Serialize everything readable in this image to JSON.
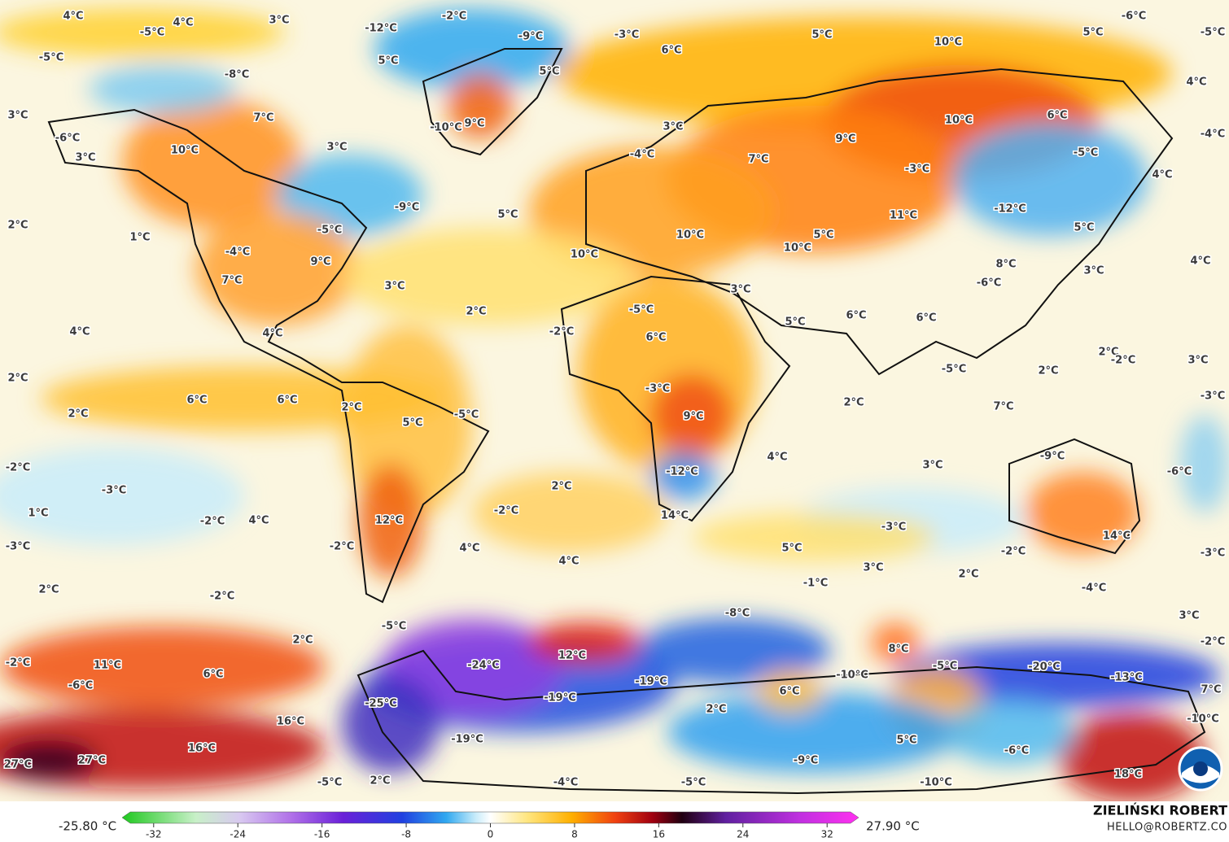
{
  "map": {
    "labels": [
      "4°C",
      "4°C",
      "3°C",
      "-2°C",
      "-6°C",
      "-5°C",
      "-12°C",
      "-9°C",
      "-3°C",
      "5°C",
      "5°C",
      "-5°C",
      "-5°C",
      "5°C",
      "6°C",
      "10°C",
      "5°C",
      "-8°C",
      "4°C",
      "3°C",
      "7°C",
      "9°C",
      "-10°C",
      "10°C",
      "6°C",
      "-6°C",
      "9°C",
      "3°C",
      "-4°C",
      "3°C",
      "10°C",
      "3°C",
      "-4°C",
      "7°C",
      "-5°C",
      "-3°C",
      "4°C",
      "-9°C",
      "5°C",
      "2°C",
      "1°C",
      "-5°C",
      "-12°C",
      "11°C",
      "5°C",
      "-4°C",
      "10°C",
      "5°C",
      "10°C",
      "10°C",
      "9°C",
      "8°C",
      "4°C",
      "3°C",
      "7°C",
      "3°C",
      "3°C",
      "-6°C",
      "2°C",
      "-5°C",
      "5°C",
      "6°C",
      "6°C",
      "4°C",
      "4°C",
      "-2°C",
      "6°C",
      "2°C",
      "2°C",
      "-2°C",
      "3°C",
      "-5°C",
      "2°C",
      "-3°C",
      "6°C",
      "6°C",
      "2°C",
      "-3°C",
      "2°C",
      "2°C",
      "5°C",
      "-5°C",
      "9°C",
      "7°C",
      "-9°C",
      "4°C",
      "-12°C",
      "3°C",
      "-2°C",
      "-3°C",
      "2°C",
      "-6°C",
      "1°C",
      "-2°C",
      "-2°C",
      "4°C",
      "12°C",
      "14°C",
      "-3°C",
      "-3°C",
      "-2°C",
      "4°C",
      "5°C",
      "14°C",
      "-2°C",
      "-3°C",
      "4°C",
      "3°C",
      "2°C",
      "2°C",
      "-2°C",
      "-1°C",
      "-4°C",
      "-8°C",
      "3°C",
      "-5°C",
      "2°C",
      "-2°C",
      "8°C",
      "12°C",
      "-2°C",
      "11°C",
      "-24°C",
      "-20°C",
      "-5°C",
      "-10°C",
      "-19°C",
      "-13°C",
      "6°C",
      "-6°C",
      "6°C",
      "-19°C",
      "7°C",
      "-25°C",
      "2°C",
      "16°C",
      "-10°C",
      "5°C",
      "-19°C",
      "16°C",
      "-6°C",
      "-9°C",
      "27°C",
      "27°C",
      "18°C",
      "-5°C",
      "2°C",
      "-4°C",
      "-5°C",
      "-10°C"
    ],
    "colorbar": {
      "min_label": "-25.80 °C",
      "max_label": "27.90 °C",
      "range": [
        -35,
        35
      ],
      "ticks": [
        -32,
        -24,
        -16,
        -8,
        0,
        8,
        16,
        24,
        32
      ]
    },
    "credit": "ZIELIŃSKI ROBERT",
    "email": "HELLO@ROBERTZ.CO"
  }
}
